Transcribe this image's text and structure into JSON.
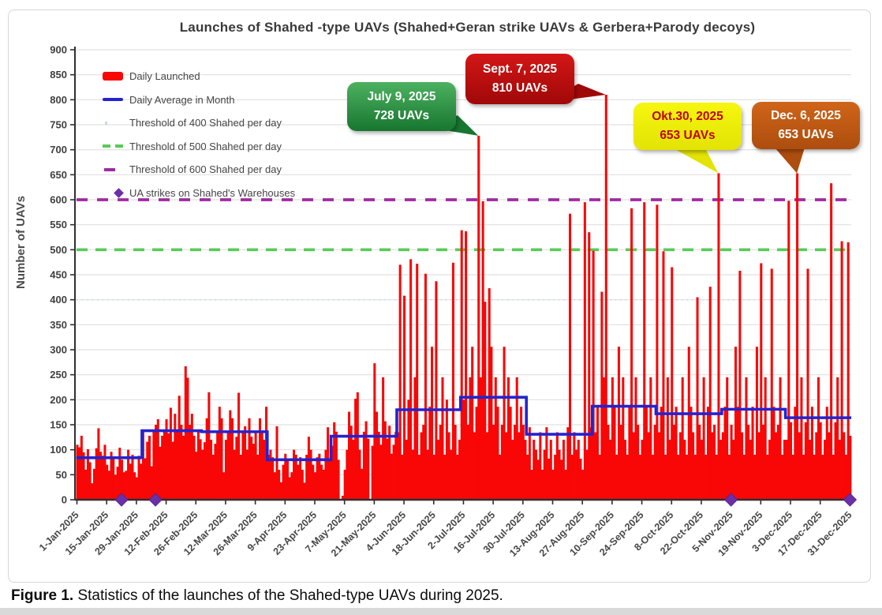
{
  "figure": {
    "caption_label": "Figure 1.",
    "caption_text": " Statistics of the launches of the Shahed-type UAVs during 2025."
  },
  "legend": {
    "items": [
      "Daily Launched",
      "Daily Average in Month",
      "Threshold of 400 Shahed per day",
      "Threshold of 500 Shahed per day",
      "Threshold of 600 Shahed per day",
      "UA strikes on Shahed's Warehouses"
    ]
  },
  "chart_data": {
    "type": "bar",
    "title": "Launches of Shahed -type  UAVs (Shahed+Geran strike UAVs & Gerbera+Parody decoys)",
    "xlabel": "",
    "ylabel": "Number of UAVs",
    "ylim": [
      0,
      900
    ],
    "y_tick_step": 50,
    "grid": true,
    "legend_position": "top-left",
    "x_start_date": "1-Jan-2025",
    "x_tick_interval_days": 14,
    "x_tick_labels": [
      "1-Jan-2025",
      "15-Jan-2025",
      "29-Jan-2025",
      "12-Feb-2025",
      "26-Feb-2025",
      "12-Mar-2025",
      "26-Mar-2025",
      "9-Apr-2025",
      "23-Apr-2025",
      "7-May-2025",
      "21-May-2025",
      "4-Jun-2025",
      "18-Jun-2025",
      "2-Jul-2025",
      "16-Jul-2025",
      "30-Jul-2025",
      "13-Aug-2025",
      "27-Aug-2025",
      "10-Sep-2025",
      "24-Sep-2025",
      "8-Oct-2025",
      "22-Oct-2025",
      "5-Nov-2025",
      "19-Nov-2025",
      "3-Dec-2025",
      "17-Dec-2025",
      "31-Dec-2025"
    ],
    "months": [
      "Jan",
      "Feb",
      "Mar",
      "Apr",
      "May",
      "Jun",
      "Jul",
      "Aug",
      "Sep",
      "Oct",
      "Nov",
      "Dec"
    ],
    "month_lengths": [
      31,
      28,
      31,
      30,
      31,
      30,
      31,
      31,
      30,
      31,
      30,
      31
    ],
    "bar_series": {
      "name": "Daily Launched",
      "color": "#f90606",
      "note": "estimated daily values read from chart pixels",
      "values_by_month": {
        "Jan": [
          110,
          105,
          128,
          95,
          60,
          101,
          75,
          33,
          62,
          103,
          143,
          96,
          88,
          110,
          70,
          58,
          96,
          84,
          50,
          66,
          104,
          80,
          55,
          58,
          100,
          72,
          90,
          55,
          45,
          88,
          72
        ],
        "Feb": [
          139,
          83,
          116,
          128,
          67,
          140,
          150,
          161,
          106,
          128,
          139,
          161,
          133,
          184,
          116,
          172,
          139,
          208,
          150,
          128,
          267,
          244,
          150,
          172,
          128,
          96,
          139,
          121
        ],
        "Mar": [
          100,
          115,
          163,
          215,
          120,
          90,
          112,
          135,
          186,
          163,
          55,
          120,
          135,
          179,
          163,
          100,
          126,
          214,
          90,
          135,
          147,
          100,
          163,
          126,
          112,
          135,
          90,
          163,
          135,
          120,
          186
        ],
        "Apr": [
          90,
          100,
          85,
          55,
          147,
          60,
          35,
          70,
          92,
          80,
          45,
          55,
          100,
          90,
          70,
          85,
          60,
          34,
          90,
          126,
          100,
          70,
          55,
          85,
          92,
          70,
          60,
          100,
          145,
          80
        ],
        "May": [
          108,
          155,
          136,
          80,
          0,
          8,
          60,
          100,
          176,
          148,
          120,
          202,
          215,
          100,
          62,
          136,
          157,
          122,
          0,
          108,
          273,
          176,
          136,
          110,
          245,
          157,
          122,
          148,
          92,
          110,
          136
        ],
        "Jun": [
          135,
          470,
          90,
          408,
          120,
          200,
          481,
          100,
          245,
          472,
          90,
          135,
          150,
          452,
          100,
          186,
          306,
          90,
          437,
          120,
          150,
          245,
          90,
          200,
          135,
          100,
          474,
          150,
          90,
          120
        ],
        "Jul": [
          539,
          200,
          537,
          150,
          245,
          306,
          135,
          186,
          728,
          245,
          597,
          396,
          135,
          423,
          306,
          150,
          245,
          186,
          90,
          150,
          306,
          135,
          245,
          186,
          120,
          150,
          245,
          135,
          186,
          150,
          120
        ],
        "Aug": [
          90,
          145,
          60,
          120,
          100,
          80,
          135,
          60,
          100,
          145,
          82,
          120,
          60,
          90,
          135,
          100,
          80,
          120,
          60,
          145,
          572,
          90,
          135,
          100,
          120,
          82,
          60,
          595,
          100,
          535,
          145
        ],
        "Sep": [
          498,
          135,
          186,
          90,
          416,
          245,
          810,
          150,
          120,
          245,
          186,
          90,
          306,
          150,
          245,
          120,
          90,
          186,
          583,
          135,
          245,
          150,
          90,
          120,
          595,
          186,
          135,
          245,
          90,
          150
        ],
        "Oct": [
          590,
          135,
          186,
          497,
          90,
          245,
          120,
          465,
          150,
          186,
          90,
          135,
          245,
          120,
          90,
          306,
          186,
          135,
          90,
          405,
          150,
          120,
          245,
          90,
          186,
          426,
          135,
          150,
          90,
          653,
          120
        ],
        "Nov": [
          135,
          186,
          245,
          90,
          150,
          120,
          306,
          186,
          458,
          135,
          90,
          245,
          150,
          120,
          186,
          90,
          306,
          135,
          473,
          150,
          245,
          90,
          120,
          462,
          186,
          135,
          150,
          245,
          90,
          120
        ],
        "Dec": [
          120,
          598,
          155,
          90,
          186,
          653,
          135,
          245,
          90,
          155,
          462,
          120,
          186,
          90,
          135,
          245,
          155,
          90,
          120,
          186,
          135,
          633,
          90,
          155,
          245,
          120,
          517,
          135,
          90,
          515,
          128
        ]
      }
    },
    "average_series": {
      "name": "Daily Average in Month",
      "color": "#2323cf",
      "monthly_averages": [
        84,
        138,
        136,
        80,
        127,
        180,
        205,
        131,
        187,
        172,
        181,
        164
      ]
    },
    "thresholds": [
      {
        "label": "Threshold of 400 Shahed per day",
        "value": 400,
        "color": "#c3d7e8",
        "style": "dotted"
      },
      {
        "label": "Threshold of 500 Shahed per day",
        "value": 500,
        "color": "#57cb57",
        "style": "dashed"
      },
      {
        "label": "Threshold of 600 Shahed per day",
        "value": 600,
        "color": "#9f2b9f",
        "style": "dashed"
      }
    ],
    "events": {
      "label": "UA strikes on Shahed's Warehouses",
      "marker": "diamond",
      "color": "#6b2fa8",
      "day_indices": [
        21,
        37,
        308,
        364
      ],
      "approx_dates": [
        "22-Jan-2025",
        "7-Feb-2025",
        "5-Nov-2025",
        "31-Dec-2025"
      ]
    },
    "annotations": [
      {
        "date": "July 9, 2025",
        "value_label": "728 UAVs",
        "value": 728,
        "day_index": 189,
        "bg": "#4cb160",
        "bg2": "#17762f",
        "text_color": "#ffffff"
      },
      {
        "date": "Sept. 7, 2025",
        "value_label": "810 UAVs",
        "value": 810,
        "day_index": 249,
        "bg": "#d31616",
        "bg2": "#a00808",
        "text_color": "#ffffff"
      },
      {
        "date": "Okt.30, 2025",
        "value_label": "653 UAVs",
        "value": 653,
        "day_index": 302,
        "bg": "#f6f60f",
        "bg2": "#e3e305",
        "text_color": "#c00404"
      },
      {
        "date": "Dec. 6, 2025",
        "value_label": "653 UAVs",
        "value": 653,
        "day_index": 339,
        "bg": "#cf6519",
        "bg2": "#ad4d0e",
        "text_color": "#ffffff"
      }
    ]
  }
}
